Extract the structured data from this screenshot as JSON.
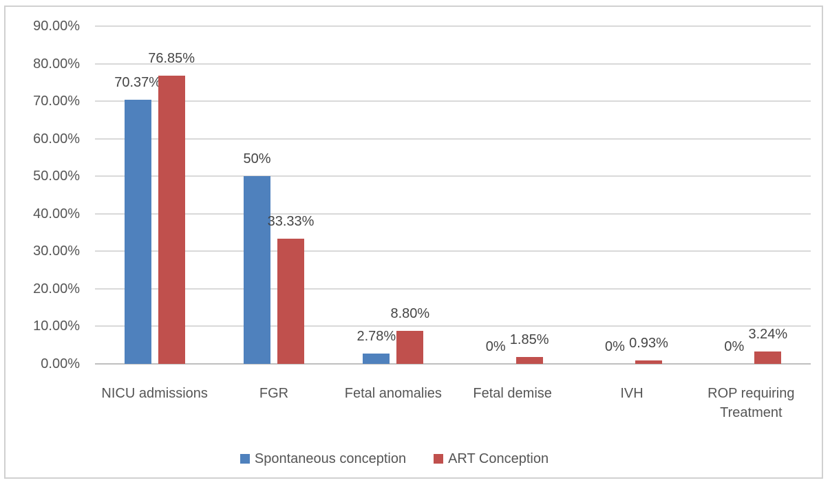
{
  "chart_data": {
    "type": "bar",
    "title": "",
    "categories": [
      "NICU admissions",
      "FGR",
      "Fetal anomalies",
      "Fetal demise",
      "IVH",
      "ROP requiring Treatment"
    ],
    "series": [
      {
        "name": "Spontaneous conception",
        "color": "#4F81BD",
        "values": [
          70.37,
          50,
          2.78,
          0,
          0,
          0
        ],
        "labels": [
          "70.37%",
          "50%",
          "2.78%",
          "0%",
          "0%",
          "0%"
        ]
      },
      {
        "name": "ART Conception",
        "color": "#C0504D",
        "values": [
          76.85,
          33.33,
          8.8,
          1.85,
          0.93,
          3.24
        ],
        "labels": [
          "76.85%",
          "33.33%",
          "8.80%",
          "1.85%",
          "0.93%",
          "3.24%"
        ]
      }
    ],
    "y_axis": {
      "min": 0,
      "max": 90,
      "step": 10,
      "tick_labels": [
        "0.00%",
        "10.00%",
        "20.00%",
        "30.00%",
        "40.00%",
        "50.00%",
        "60.00%",
        "70.00%",
        "80.00%",
        "90.00%"
      ]
    },
    "legend_position": "bottom",
    "grid": "horizontal",
    "colors": {
      "gridline": "#d9d9d9",
      "axis_line": "#bfbfbf",
      "frame_border": "#d0d0d0",
      "axis_text": "#555555",
      "data_label_text": "#454545"
    }
  }
}
